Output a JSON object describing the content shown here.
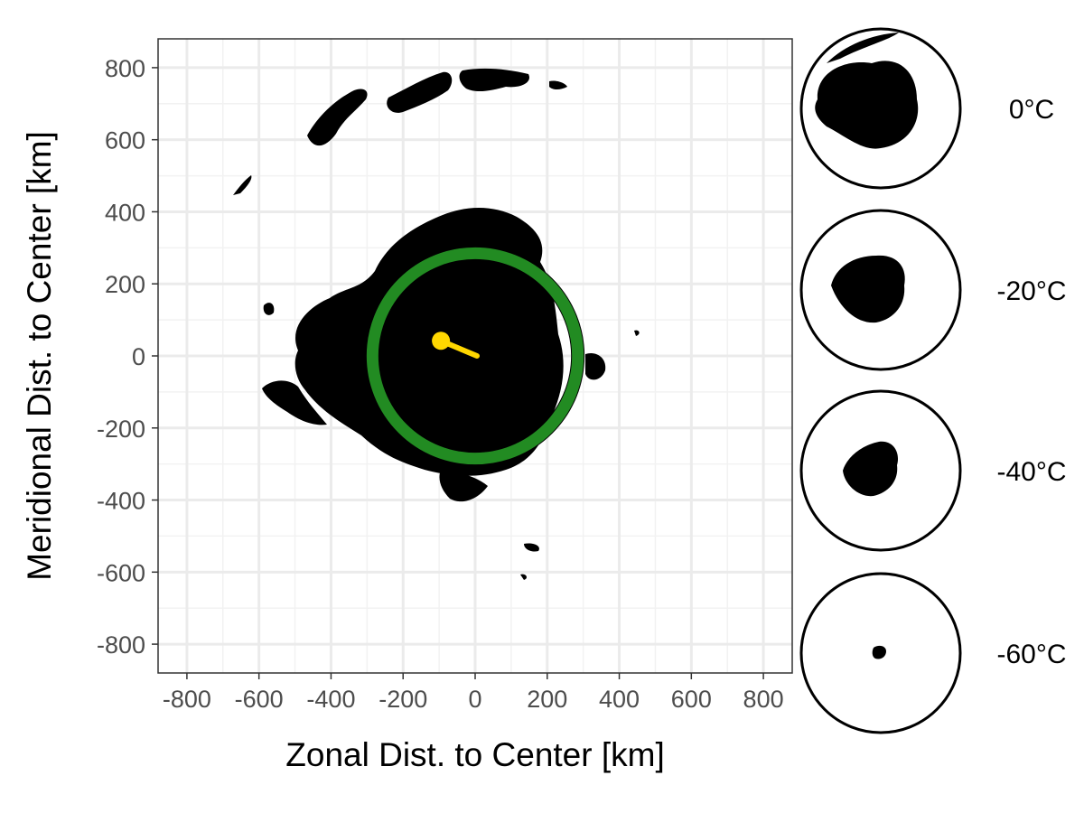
{
  "chart_data": {
    "type": "scatter",
    "xlabel": "Zonal Dist. to Center [km]",
    "ylabel": "Meridional Dist. to Center [km]",
    "xlim": [
      -880,
      880
    ],
    "ylim": [
      -880,
      880
    ],
    "x_ticks": [
      -800,
      -600,
      -400,
      -200,
      0,
      200,
      400,
      600,
      800
    ],
    "y_ticks": [
      800,
      600,
      400,
      200,
      0,
      -200,
      -400,
      -600,
      -800
    ],
    "grid": true,
    "ring": {
      "center_km": [
        0,
        0
      ],
      "radius_km": 300,
      "color": "#228b22"
    },
    "vector": {
      "from_km": [
        -95,
        42
      ],
      "to_km": [
        5,
        0
      ],
      "color": "#ffd700"
    },
    "cloud_color": "#000000",
    "inset_panels": [
      {
        "label": "0°C"
      },
      {
        "label": "-20°C"
      },
      {
        "label": "-40°C"
      },
      {
        "label": "-60°C"
      }
    ]
  }
}
